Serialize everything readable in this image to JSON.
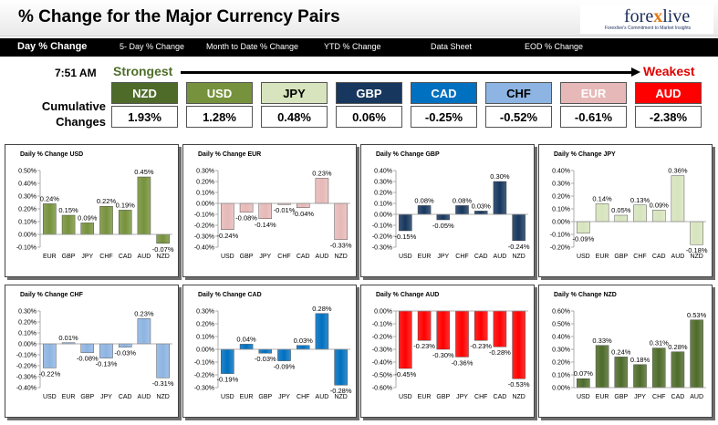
{
  "header": {
    "title": "% Change for the Major Currency Pairs",
    "logo": {
      "name": "forexlive",
      "tagline": "Forexlive's Commitment to Market Insights"
    }
  },
  "nav": {
    "tabs": [
      {
        "label": "Day % Change",
        "active": true
      },
      {
        "label": "5- Day % Change"
      },
      {
        "label": "Month to Date % Change"
      },
      {
        "label": "YTD % Change"
      },
      {
        "label": "Data Sheet"
      },
      {
        "label": "EOD % Change"
      }
    ]
  },
  "summary": {
    "time": "7:51 AM",
    "strongest_label": "Strongest",
    "weakest_label": "Weakest",
    "cumulative_line1": "Cumulative",
    "cumulative_line2": "Changes",
    "currencies": [
      {
        "code": "NZD",
        "value": "1.93%",
        "color": "#4e6b2a",
        "text_color": "#ffffff"
      },
      {
        "code": "USD",
        "value": "1.28%",
        "color": "#76923c",
        "text_color": "#ffffff"
      },
      {
        "code": "JPY",
        "value": "0.48%",
        "color": "#d7e4bd",
        "text_color": "#000000"
      },
      {
        "code": "GBP",
        "value": "0.06%",
        "color": "#17375e",
        "text_color": "#ffffff"
      },
      {
        "code": "CAD",
        "value": "-0.25%",
        "color": "#0070c0",
        "text_color": "#ffffff"
      },
      {
        "code": "CHF",
        "value": "-0.52%",
        "color": "#8db4e2",
        "text_color": "#000000"
      },
      {
        "code": "EUR",
        "value": "-0.61%",
        "color": "#e6b9b8",
        "text_color": "#ffffff"
      },
      {
        "code": "AUD",
        "value": "-2.38%",
        "color": "#ff0000",
        "text_color": "#ffffff"
      }
    ]
  },
  "chart_data": [
    {
      "type": "bar",
      "title": "Daily % Change USD",
      "color": "#76923c",
      "categories": [
        "EUR",
        "GBP",
        "JPY",
        "CHF",
        "CAD",
        "AUD",
        "NZD"
      ],
      "values": [
        0.24,
        0.15,
        0.09,
        0.22,
        0.19,
        0.45,
        -0.07
      ],
      "labels": [
        "0.24%",
        "0.15%",
        "0.09%",
        "0.22%",
        "0.19%",
        "0.45%",
        "-0.07%"
      ],
      "ylim": [
        -0.1,
        0.5
      ],
      "yticks": [
        -0.1,
        0,
        0.1,
        0.2,
        0.3,
        0.4,
        0.5
      ],
      "ytick_labels": [
        "-0.10%",
        "0.00%",
        "0.10%",
        "0.20%",
        "0.30%",
        "0.40%",
        "0.50%"
      ]
    },
    {
      "type": "bar",
      "title": "Daily % Change EUR",
      "color": "#e6b9b8",
      "categories": [
        "USD",
        "GBP",
        "JPY",
        "CHF",
        "CAD",
        "AUD",
        "NZD"
      ],
      "values": [
        -0.24,
        -0.08,
        -0.14,
        -0.01,
        -0.04,
        0.23,
        -0.33
      ],
      "labels": [
        "-0.24%",
        "-0.08%",
        "-0.14%",
        "-0.01%",
        "-0.04%",
        "0.23%",
        "-0.33%"
      ],
      "ylim": [
        -0.4,
        0.3
      ],
      "yticks": [
        -0.4,
        -0.3,
        -0.2,
        -0.1,
        0,
        0.1,
        0.2,
        0.3
      ],
      "ytick_labels": [
        "-0.40%",
        "-0.30%",
        "-0.20%",
        "-0.10%",
        "0.00%",
        "0.10%",
        "0.20%",
        "0.30%"
      ]
    },
    {
      "type": "bar",
      "title": "Daily % Change GBP",
      "color": "#17375e",
      "categories": [
        "USD",
        "EUR",
        "JPY",
        "CHF",
        "CAD",
        "AUD",
        "NZD"
      ],
      "values": [
        -0.15,
        0.08,
        -0.05,
        0.08,
        0.03,
        0.3,
        -0.24
      ],
      "labels": [
        "-0.15%",
        "0.08%",
        "-0.05%",
        "0.08%",
        "0.03%",
        "0.30%",
        "-0.24%"
      ],
      "ylim": [
        -0.3,
        0.4
      ],
      "yticks": [
        -0.3,
        -0.2,
        -0.1,
        0,
        0.1,
        0.2,
        0.3,
        0.4
      ],
      "ytick_labels": [
        "-0.30%",
        "-0.20%",
        "-0.10%",
        "0.00%",
        "0.10%",
        "0.20%",
        "0.30%",
        "0.40%"
      ]
    },
    {
      "type": "bar",
      "title": "Daily % Change JPY",
      "color": "#d7e4bd",
      "categories": [
        "USD",
        "EUR",
        "GBP",
        "CHF",
        "CAD",
        "AUD",
        "NZD"
      ],
      "values": [
        -0.09,
        0.14,
        0.05,
        0.13,
        0.09,
        0.36,
        -0.18
      ],
      "labels": [
        "-0.09%",
        "0.14%",
        "0.05%",
        "0.13%",
        "0.09%",
        "0.36%",
        "-0.18%"
      ],
      "ylim": [
        -0.2,
        0.4
      ],
      "yticks": [
        -0.2,
        -0.1,
        0,
        0.1,
        0.2,
        0.3,
        0.4
      ],
      "ytick_labels": [
        "-0.20%",
        "-0.10%",
        "0.00%",
        "0.10%",
        "0.20%",
        "0.30%",
        "0.40%"
      ]
    },
    {
      "type": "bar",
      "title": "Daily % Change CHF",
      "color": "#8db4e2",
      "categories": [
        "USD",
        "EUR",
        "GBP",
        "JPY",
        "CAD",
        "AUD",
        "NZD"
      ],
      "values": [
        -0.22,
        0.01,
        -0.08,
        -0.13,
        -0.03,
        0.23,
        -0.31
      ],
      "labels": [
        "-0.22%",
        "0.01%",
        "-0.08%",
        "-0.13%",
        "-0.03%",
        "0.23%",
        "-0.31%"
      ],
      "ylim": [
        -0.4,
        0.3
      ],
      "yticks": [
        -0.4,
        -0.3,
        -0.2,
        -0.1,
        0,
        0.1,
        0.2,
        0.3
      ],
      "ytick_labels": [
        "-0.40%",
        "-0.30%",
        "-0.20%",
        "-0.10%",
        "0.00%",
        "0.10%",
        "0.20%",
        "0.30%"
      ]
    },
    {
      "type": "bar",
      "title": "Daily % Change CAD",
      "color": "#0070c0",
      "categories": [
        "USD",
        "EUR",
        "GBP",
        "JPY",
        "CHF",
        "AUD",
        "NZD"
      ],
      "values": [
        -0.19,
        0.04,
        -0.03,
        -0.09,
        0.03,
        0.28,
        -0.28
      ],
      "labels": [
        "-0.19%",
        "0.04%",
        "-0.03%",
        "-0.09%",
        "0.03%",
        "0.28%",
        "-0.28%"
      ],
      "ylim": [
        -0.3,
        0.3
      ],
      "yticks": [
        -0.3,
        -0.2,
        -0.1,
        0,
        0.1,
        0.2,
        0.3
      ],
      "ytick_labels": [
        "-0.30%",
        "-0.20%",
        "-0.10%",
        "0.00%",
        "0.10%",
        "0.20%",
        "0.30%"
      ]
    },
    {
      "type": "bar",
      "title": "Daily % Change AUD",
      "color": "#ff0000",
      "categories": [
        "USD",
        "EUR",
        "GBP",
        "JPY",
        "CHF",
        "CAD",
        "NZD"
      ],
      "values": [
        -0.45,
        -0.23,
        -0.3,
        -0.36,
        -0.23,
        -0.28,
        -0.53
      ],
      "labels": [
        "-0.45%",
        "-0.23%",
        "-0.30%",
        "-0.36%",
        "-0.23%",
        "-0.28%",
        "-0.53%"
      ],
      "ylim": [
        -0.6,
        0.0
      ],
      "yticks": [
        -0.6,
        -0.5,
        -0.4,
        -0.3,
        -0.2,
        -0.1,
        0
      ],
      "ytick_labels": [
        "-0.60%",
        "-0.50%",
        "-0.40%",
        "-0.30%",
        "-0.20%",
        "-0.10%",
        "0.00%"
      ]
    },
    {
      "type": "bar",
      "title": "Daily % Change NZD",
      "color": "#4e6b2a",
      "categories": [
        "USD",
        "EUR",
        "GBP",
        "JPY",
        "CHF",
        "CAD",
        "AUD"
      ],
      "values": [
        0.07,
        0.33,
        0.24,
        0.18,
        0.31,
        0.28,
        0.53
      ],
      "labels": [
        "0.07%",
        "0.33%",
        "0.24%",
        "0.18%",
        "0.31%",
        "0.28%",
        "0.53%"
      ],
      "ylim": [
        0.0,
        0.6
      ],
      "yticks": [
        0,
        0.1,
        0.2,
        0.3,
        0.4,
        0.5,
        0.6
      ],
      "ytick_labels": [
        "0.00%",
        "0.10%",
        "0.20%",
        "0.30%",
        "0.40%",
        "0.50%",
        "0.60%"
      ]
    }
  ]
}
